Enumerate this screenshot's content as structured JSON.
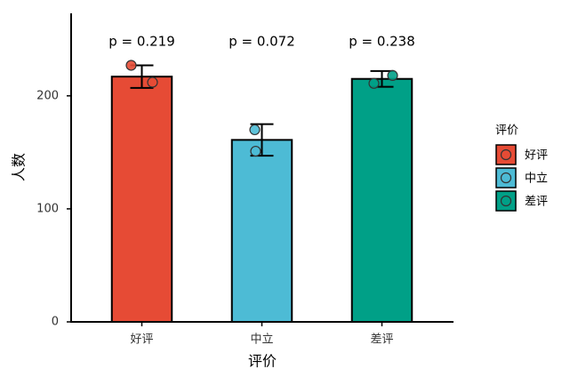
{
  "chart_data": {
    "type": "bar",
    "x_label": "评价",
    "y_label": "人数",
    "categories": [
      "好评",
      "中立",
      "差评"
    ],
    "values": [
      217,
      161,
      215
    ],
    "errors": [
      10,
      14,
      7
    ],
    "points": [
      [
        227,
        212
      ],
      [
        170,
        151
      ],
      [
        211,
        218
      ]
    ],
    "annotations": [
      "p = 0.219",
      "p = 0.072",
      "p = 0.238"
    ],
    "colors": [
      "#E64B35",
      "#4DBBD5",
      "#00A087"
    ],
    "legend_title": "评价",
    "legend": "right",
    "ylim": [
      0,
      273
    ],
    "yticks": [
      0,
      100,
      200
    ],
    "grid": false
  }
}
